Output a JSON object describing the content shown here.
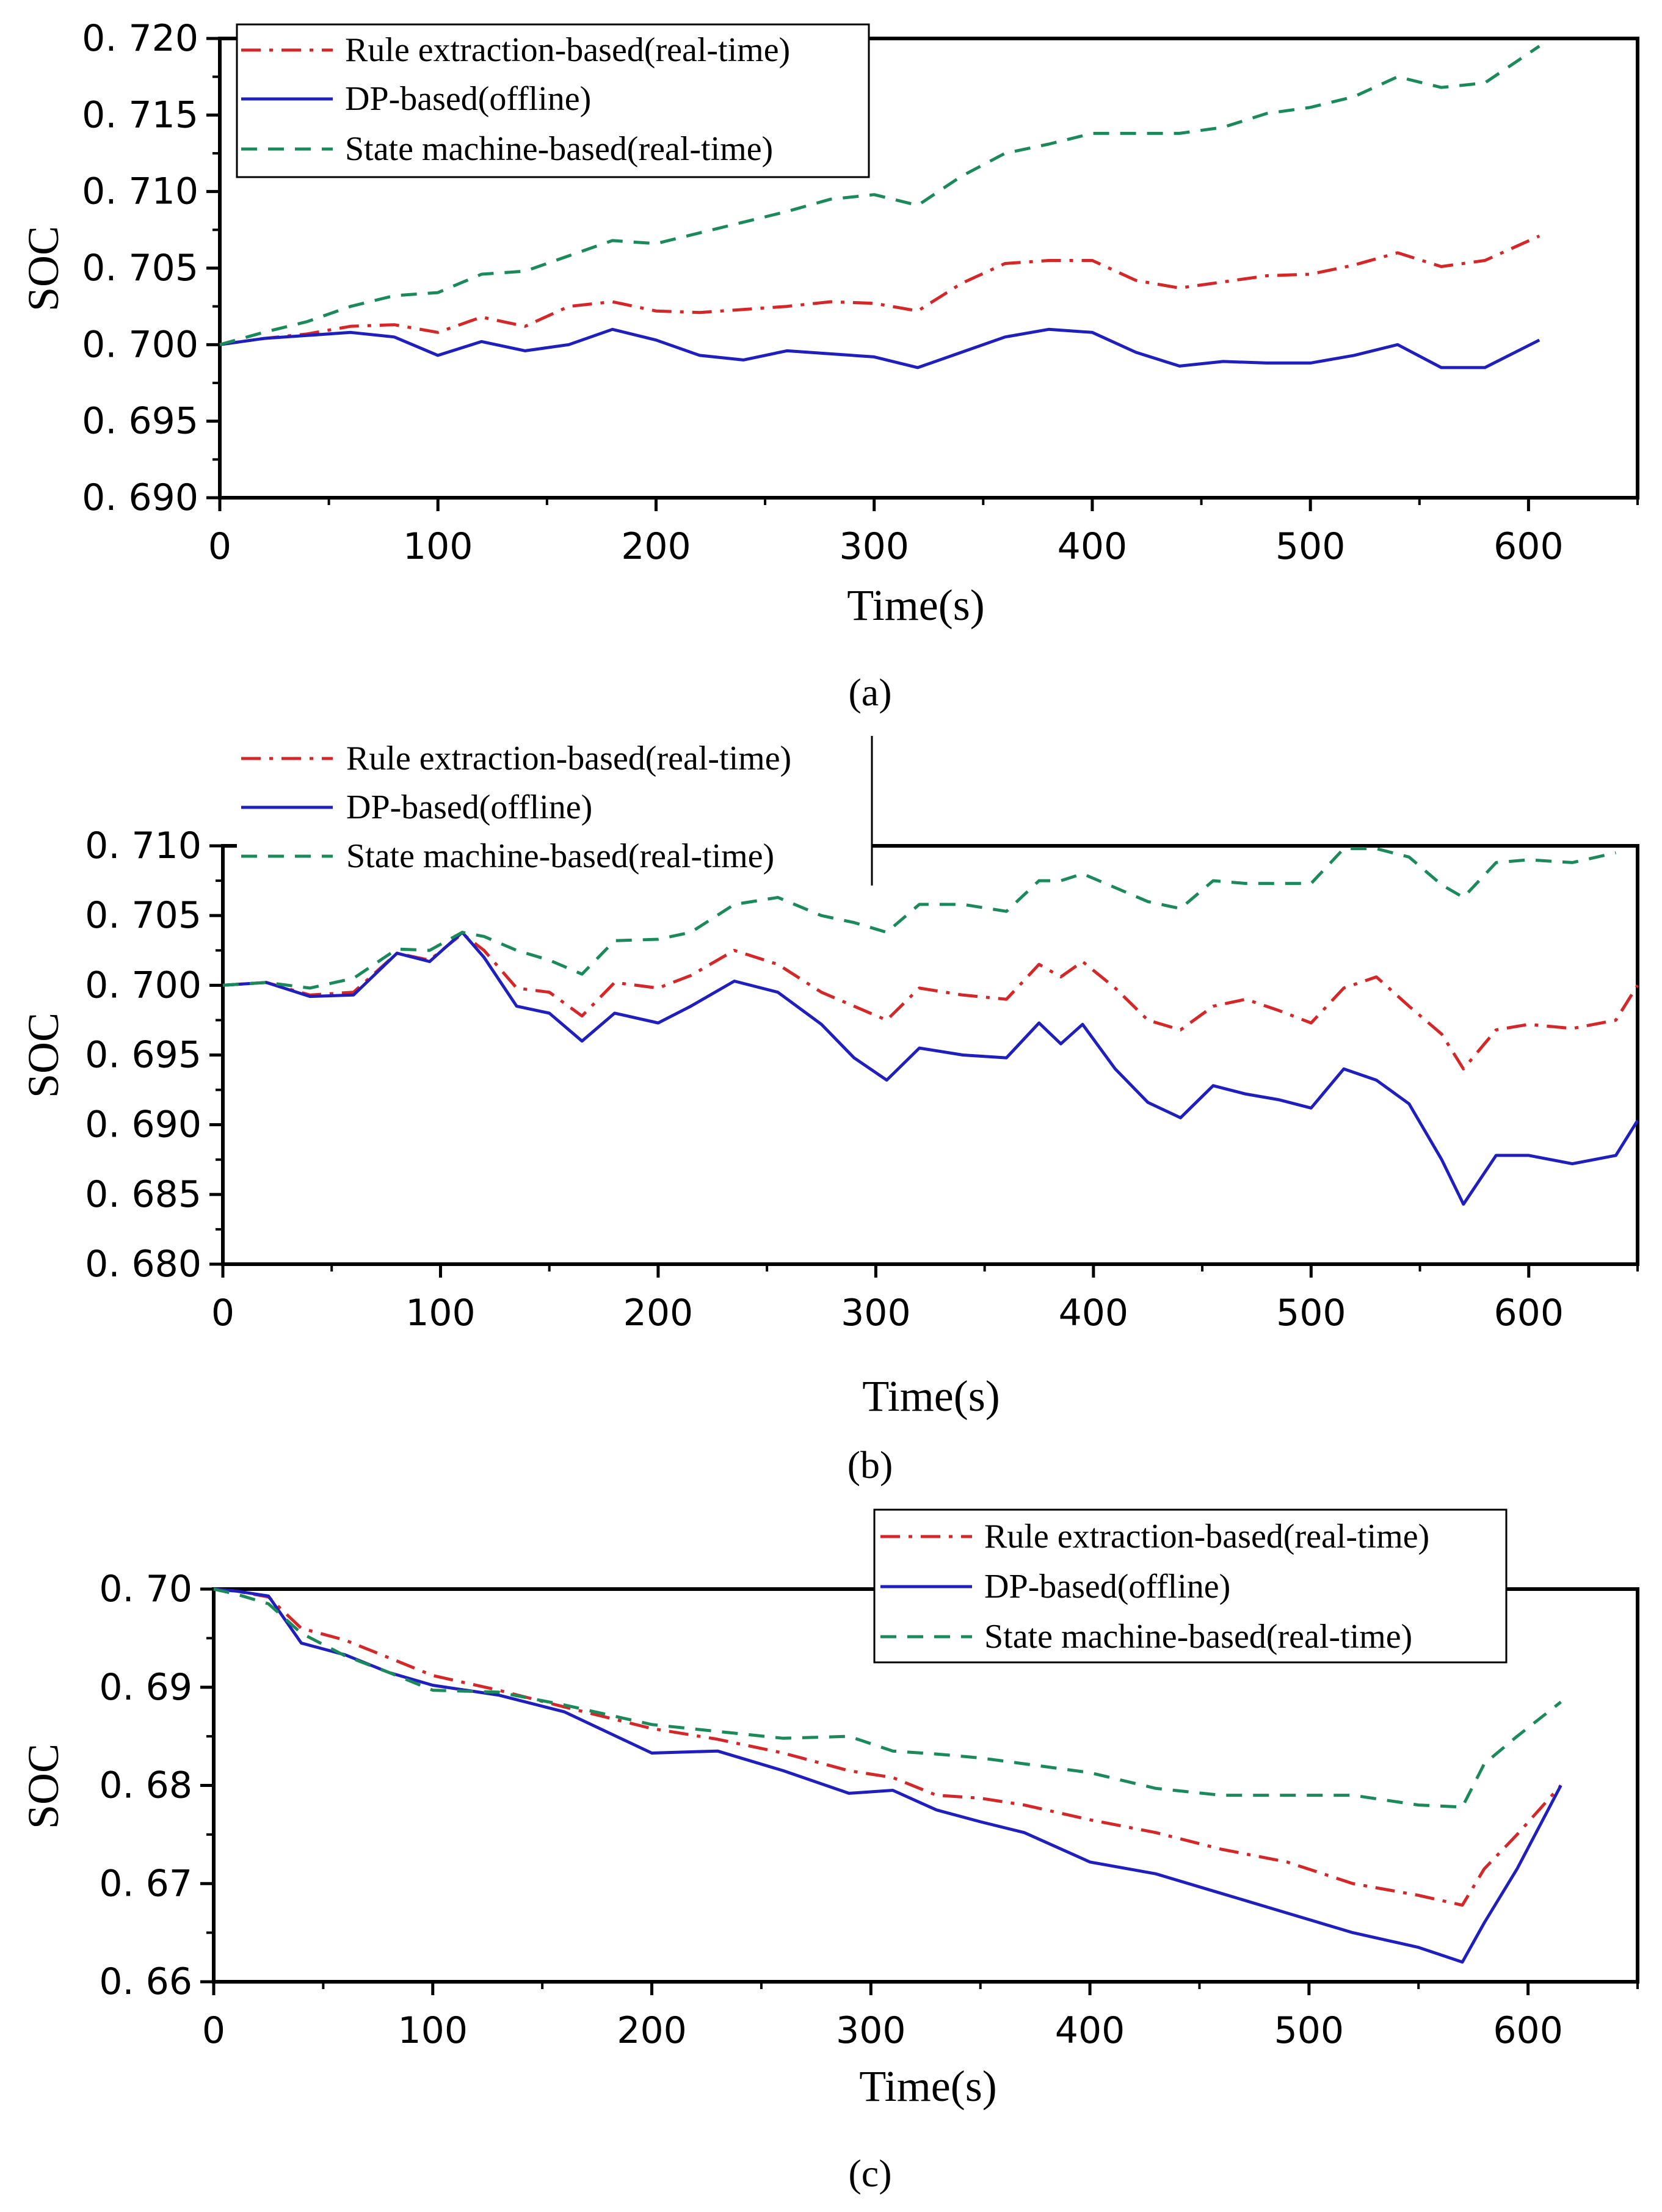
{
  "figure": {
    "panel_labels": [
      "(a)",
      "(b)",
      "(c)"
    ]
  },
  "colors": {
    "rule": "#d62728",
    "dp": "#1f1fbf",
    "state": "#1a8a5a"
  },
  "chart_data": [
    {
      "type": "line",
      "panel": "(a)",
      "xlabel": "Time(s)",
      "ylabel": "SOC",
      "xlim": [
        0,
        650
      ],
      "ylim": [
        0.69,
        0.72
      ],
      "xticks": [
        0,
        100,
        200,
        300,
        400,
        500,
        600
      ],
      "xtick_labels": [
        "0",
        "100",
        "200",
        "300",
        "400",
        "500",
        "600"
      ],
      "yticks": [
        0.69,
        0.695,
        0.7,
        0.705,
        0.71,
        0.715,
        0.72
      ],
      "ytick_labels": [
        "0. 690",
        "0. 695",
        "0. 700",
        "0. 705",
        "0. 710",
        "0. 715",
        "0. 720"
      ],
      "legend": [
        "Rule extraction-based(real-time)",
        "DP-based(offline)",
        "State machine-based(real-time)"
      ],
      "legend_position": "top-left",
      "series": [
        {
          "name": "Rule extraction-based(real-time)",
          "style": "dashdot",
          "color_key": "rule",
          "x": [
            0,
            20,
            40,
            60,
            80,
            100,
            120,
            140,
            160,
            180,
            200,
            220,
            240,
            260,
            280,
            300,
            320,
            340,
            360,
            380,
            400,
            420,
            440,
            460,
            480,
            500,
            520,
            540,
            560,
            580,
            605
          ],
          "y": [
            0.7,
            0.7004,
            0.7007,
            0.7012,
            0.7013,
            0.7008,
            0.7018,
            0.7012,
            0.7025,
            0.7028,
            0.7022,
            0.7021,
            0.7023,
            0.7025,
            0.7028,
            0.7027,
            0.7022,
            0.704,
            0.7053,
            0.7055,
            0.7055,
            0.7042,
            0.7037,
            0.7041,
            0.7045,
            0.7046,
            0.7052,
            0.706,
            0.7051,
            0.7055,
            0.7071
          ]
        },
        {
          "name": "DP-based(offline)",
          "style": "solid",
          "color_key": "dp",
          "x": [
            0,
            20,
            40,
            60,
            80,
            100,
            120,
            140,
            160,
            180,
            200,
            220,
            240,
            260,
            280,
            300,
            320,
            340,
            360,
            380,
            400,
            420,
            440,
            460,
            480,
            500,
            520,
            540,
            560,
            580,
            605
          ],
          "y": [
            0.7,
            0.7004,
            0.7006,
            0.7008,
            0.7005,
            0.6993,
            0.7002,
            0.6996,
            0.7,
            0.701,
            0.7003,
            0.6993,
            0.699,
            0.6996,
            0.6994,
            0.6992,
            0.6985,
            0.6995,
            0.7005,
            0.701,
            0.7008,
            0.6995,
            0.6986,
            0.6989,
            0.6988,
            0.6988,
            0.6993,
            0.7,
            0.6985,
            0.6985,
            0.7003
          ]
        },
        {
          "name": "State machine-based(real-time)",
          "style": "dashed",
          "color_key": "state",
          "x": [
            0,
            20,
            40,
            60,
            80,
            100,
            120,
            140,
            160,
            180,
            200,
            220,
            240,
            260,
            280,
            300,
            320,
            340,
            360,
            380,
            400,
            420,
            440,
            460,
            480,
            500,
            520,
            540,
            560,
            580,
            605
          ],
          "y": [
            0.7,
            0.7008,
            0.7015,
            0.7025,
            0.7032,
            0.7034,
            0.7046,
            0.7048,
            0.7058,
            0.7068,
            0.7066,
            0.7073,
            0.708,
            0.7087,
            0.7095,
            0.7098,
            0.7091,
            0.711,
            0.7125,
            0.7131,
            0.7138,
            0.7138,
            0.7138,
            0.7142,
            0.7151,
            0.7155,
            0.7162,
            0.7175,
            0.7168,
            0.7171,
            0.7195
          ]
        }
      ]
    },
    {
      "type": "line",
      "panel": "(b)",
      "xlabel": "Time(s)",
      "ylabel": "SOC",
      "xlim": [
        0,
        650
      ],
      "ylim": [
        0.68,
        0.71
      ],
      "xticks": [
        0,
        100,
        200,
        300,
        400,
        500,
        600
      ],
      "xtick_labels": [
        "0",
        "100",
        "200",
        "300",
        "400",
        "500",
        "600"
      ],
      "yticks": [
        0.68,
        0.685,
        0.69,
        0.695,
        0.7,
        0.705,
        0.71
      ],
      "ytick_labels": [
        "0. 680",
        "0. 685",
        "0. 690",
        "0. 695",
        "0. 700",
        "0. 705",
        "0. 710"
      ],
      "legend": [
        "Rule extraction-based(real-time)",
        "DP-based(offline)",
        "State machine-based(real-time)"
      ],
      "legend_position": "top-left",
      "series": [
        {
          "name": "Rule extraction-based(real-time)",
          "style": "dashdot",
          "color_key": "rule",
          "x": [
            0,
            20,
            40,
            60,
            80,
            95,
            110,
            120,
            135,
            150,
            165,
            180,
            200,
            215,
            235,
            255,
            275,
            290,
            305,
            320,
            340,
            360,
            375,
            385,
            395,
            410,
            425,
            440,
            455,
            470,
            485,
            500,
            515,
            530,
            545,
            560,
            570,
            585,
            600,
            620,
            640,
            650
          ],
          "y": [
            0.7,
            0.7002,
            0.6993,
            0.6995,
            0.7023,
            0.7018,
            0.7037,
            0.7025,
            0.6998,
            0.6995,
            0.6978,
            0.7002,
            0.6998,
            0.7007,
            0.7025,
            0.7015,
            0.6995,
            0.6985,
            0.6975,
            0.6998,
            0.6993,
            0.699,
            0.7015,
            0.7006,
            0.7017,
            0.6998,
            0.6975,
            0.6968,
            0.6985,
            0.699,
            0.6982,
            0.6973,
            0.6998,
            0.7006,
            0.6985,
            0.6965,
            0.694,
            0.6968,
            0.6972,
            0.6969,
            0.6975,
            0.7
          ]
        },
        {
          "name": "DP-based(offline)",
          "style": "solid",
          "color_key": "dp",
          "x": [
            0,
            20,
            40,
            60,
            80,
            95,
            110,
            120,
            135,
            150,
            165,
            180,
            200,
            215,
            235,
            255,
            275,
            290,
            305,
            320,
            340,
            360,
            375,
            385,
            395,
            410,
            425,
            440,
            455,
            470,
            485,
            500,
            515,
            530,
            545,
            560,
            570,
            585,
            600,
            620,
            640,
            650
          ],
          "y": [
            0.7,
            0.7002,
            0.6992,
            0.6993,
            0.7023,
            0.7017,
            0.7038,
            0.702,
            0.6985,
            0.698,
            0.696,
            0.698,
            0.6973,
            0.6985,
            0.7003,
            0.6995,
            0.6972,
            0.6948,
            0.6932,
            0.6955,
            0.695,
            0.6948,
            0.6973,
            0.6958,
            0.6972,
            0.694,
            0.6916,
            0.6905,
            0.6928,
            0.6922,
            0.6918,
            0.6912,
            0.694,
            0.6932,
            0.6915,
            0.6875,
            0.6843,
            0.6878,
            0.6878,
            0.6872,
            0.6878,
            0.6903
          ]
        },
        {
          "name": "State machine-based(real-time)",
          "style": "dashed",
          "color_key": "state",
          "x": [
            0,
            20,
            40,
            60,
            80,
            95,
            110,
            120,
            135,
            150,
            165,
            180,
            200,
            215,
            235,
            255,
            275,
            290,
            305,
            320,
            340,
            360,
            375,
            385,
            395,
            410,
            425,
            440,
            455,
            470,
            485,
            500,
            515,
            530,
            545,
            560,
            570,
            585,
            600,
            620,
            640
          ],
          "y": [
            0.7,
            0.7002,
            0.6998,
            0.7005,
            0.7026,
            0.7025,
            0.7038,
            0.7035,
            0.7025,
            0.7018,
            0.7008,
            0.7032,
            0.7033,
            0.7038,
            0.7058,
            0.7063,
            0.705,
            0.7045,
            0.7038,
            0.7058,
            0.7058,
            0.7053,
            0.7075,
            0.7075,
            0.708,
            0.707,
            0.706,
            0.7055,
            0.7075,
            0.7073,
            0.7073,
            0.7073,
            0.7098,
            0.7098,
            0.7092,
            0.7072,
            0.7063,
            0.7088,
            0.709,
            0.7088,
            0.7095
          ]
        }
      ]
    },
    {
      "type": "line",
      "panel": "(c)",
      "xlabel": "Time(s)",
      "ylabel": "SOC",
      "xlim": [
        0,
        650
      ],
      "ylim": [
        0.66,
        0.7
      ],
      "xticks": [
        0,
        100,
        200,
        300,
        400,
        500,
        600
      ],
      "xtick_labels": [
        "0",
        "100",
        "200",
        "300",
        "400",
        "500",
        "600"
      ],
      "yticks": [
        0.66,
        0.67,
        0.68,
        0.69,
        0.7
      ],
      "ytick_labels": [
        "0. 66",
        "0. 67",
        "0. 68",
        "0. 69",
        "0. 70"
      ],
      "legend": [
        "Rule extraction-based(real-time)",
        "DP-based(offline)",
        "State machine-based(real-time)"
      ],
      "legend_position": "top-right",
      "series": [
        {
          "name": "Rule extraction-based(real-time)",
          "style": "dashdot",
          "color_key": "rule",
          "x": [
            0,
            10,
            25,
            40,
            60,
            80,
            100,
            130,
            160,
            200,
            230,
            260,
            290,
            310,
            330,
            350,
            370,
            400,
            430,
            460,
            490,
            520,
            550,
            570,
            580,
            595,
            615
          ],
          "y": [
            0.7,
            0.6998,
            0.6992,
            0.696,
            0.6948,
            0.693,
            0.6912,
            0.6897,
            0.688,
            0.6858,
            0.6847,
            0.6833,
            0.6815,
            0.6808,
            0.679,
            0.6787,
            0.678,
            0.6765,
            0.6752,
            0.6735,
            0.6722,
            0.67,
            0.6688,
            0.6678,
            0.6715,
            0.675,
            0.68
          ]
        },
        {
          "name": "DP-based(offline)",
          "style": "solid",
          "color_key": "dp",
          "x": [
            0,
            10,
            25,
            40,
            60,
            80,
            100,
            130,
            160,
            200,
            230,
            260,
            290,
            310,
            330,
            350,
            370,
            400,
            430,
            460,
            490,
            520,
            550,
            570,
            580,
            595,
            615
          ],
          "y": [
            0.7,
            0.6998,
            0.6993,
            0.6945,
            0.6933,
            0.6915,
            0.6902,
            0.6892,
            0.6875,
            0.6833,
            0.6835,
            0.6815,
            0.6792,
            0.6795,
            0.6775,
            0.6763,
            0.6752,
            0.6722,
            0.671,
            0.669,
            0.667,
            0.665,
            0.6635,
            0.662,
            0.666,
            0.6715,
            0.68
          ]
        },
        {
          "name": "State machine-based(real-time)",
          "style": "dashed",
          "color_key": "state",
          "x": [
            0,
            10,
            25,
            40,
            60,
            80,
            100,
            130,
            160,
            200,
            230,
            260,
            290,
            310,
            330,
            350,
            370,
            400,
            430,
            460,
            490,
            520,
            550,
            570,
            580,
            595,
            615
          ],
          "y": [
            0.7,
            0.6995,
            0.6985,
            0.6955,
            0.6932,
            0.6915,
            0.6897,
            0.6895,
            0.6882,
            0.6862,
            0.6855,
            0.6848,
            0.685,
            0.6835,
            0.6832,
            0.6828,
            0.6822,
            0.6813,
            0.6797,
            0.679,
            0.679,
            0.679,
            0.678,
            0.6778,
            0.6822,
            0.685,
            0.6885
          ]
        }
      ]
    }
  ]
}
